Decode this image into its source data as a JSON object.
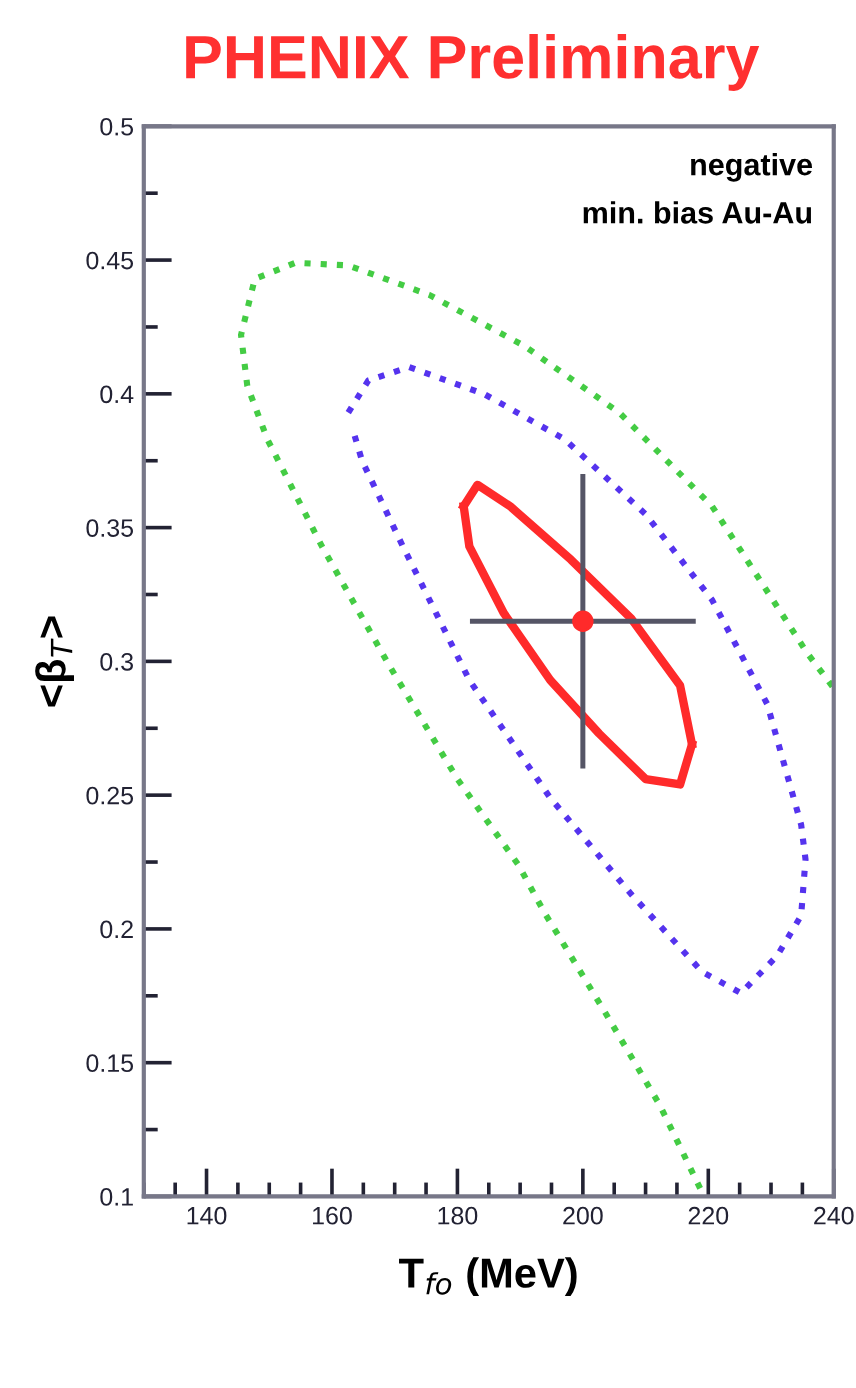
{
  "chart_data": {
    "type": "line",
    "title": "PHENIX Preliminary",
    "xlabel": "T$_{fo}$ (MeV)",
    "ylabel": "<β$_{T}$>",
    "annotations": [
      "negative",
      "min. bias Au-Au"
    ],
    "xlim": [
      130,
      240
    ],
    "xticks": [
      140,
      160,
      180,
      200,
      220,
      240
    ],
    "ylim": [
      0.1,
      0.5
    ],
    "yticks": [
      0.1,
      0.15,
      0.2,
      0.25,
      0.3,
      0.35,
      0.4,
      0.45,
      0.5
    ],
    "grid": false,
    "legend": false,
    "series": [
      {
        "color": "#44cc44",
        "line_style": "dotted",
        "x": [
          218.7,
          212.3,
          203.5,
          193.9,
          189.7,
          180,
          169,
          158.4,
          149.7,
          146.5,
          145.5,
          147.7,
          154.2,
          162.6,
          175.5,
          190.6,
          205.8,
          220.6,
          235.8,
          240
        ],
        "values": [
          0.103,
          0.134,
          0.169,
          0.206,
          0.224,
          0.256,
          0.299,
          0.343,
          0.383,
          0.403,
          0.422,
          0.443,
          0.449,
          0.448,
          0.437,
          0.418,
          0.393,
          0.358,
          0.303,
          0.29
        ]
      },
      {
        "color": "#5533ee",
        "line_style": "dotted",
        "x": [
          162.6,
          165.8,
          172.3,
          184.2,
          197.1,
          210,
          220.6,
          229.4,
          234.8,
          235.5,
          234.8,
          231,
          225.2,
          219,
          207.7,
          194.8,
          181.9,
          171.3,
          164.8,
          163.4
        ],
        "values": [
          0.393,
          0.405,
          0.41,
          0.4,
          0.383,
          0.355,
          0.323,
          0.284,
          0.239,
          0.226,
          0.205,
          0.19,
          0.176,
          0.184,
          0.213,
          0.249,
          0.293,
          0.343,
          0.375,
          0.386
        ]
      },
      {
        "color": "#ff2a2a",
        "line_style": "solid",
        "x": [
          181,
          183.2,
          188.4,
          198.1,
          207.7,
          215.5,
          217.4
        ],
        "values": [
          0.358,
          0.366,
          0.358,
          0.338,
          0.316,
          0.291,
          0.269
        ]
      },
      {
        "color": "#ff2a2a",
        "line_style": "solid",
        "x": [
          181,
          181.9,
          187.4,
          194.8,
          202.6,
          210,
          215.5,
          217.4
        ],
        "values": [
          0.358,
          0.343,
          0.318,
          0.293,
          0.273,
          0.256,
          0.254,
          0.269
        ]
      },
      {
        "type": "scatter",
        "color": "#ff2a2a",
        "marker": "circle",
        "x": [
          200
        ],
        "values": [
          0.315
        ],
        "errors": [
          0.055
        ],
        "xerrors": [
          18
        ]
      }
    ]
  }
}
